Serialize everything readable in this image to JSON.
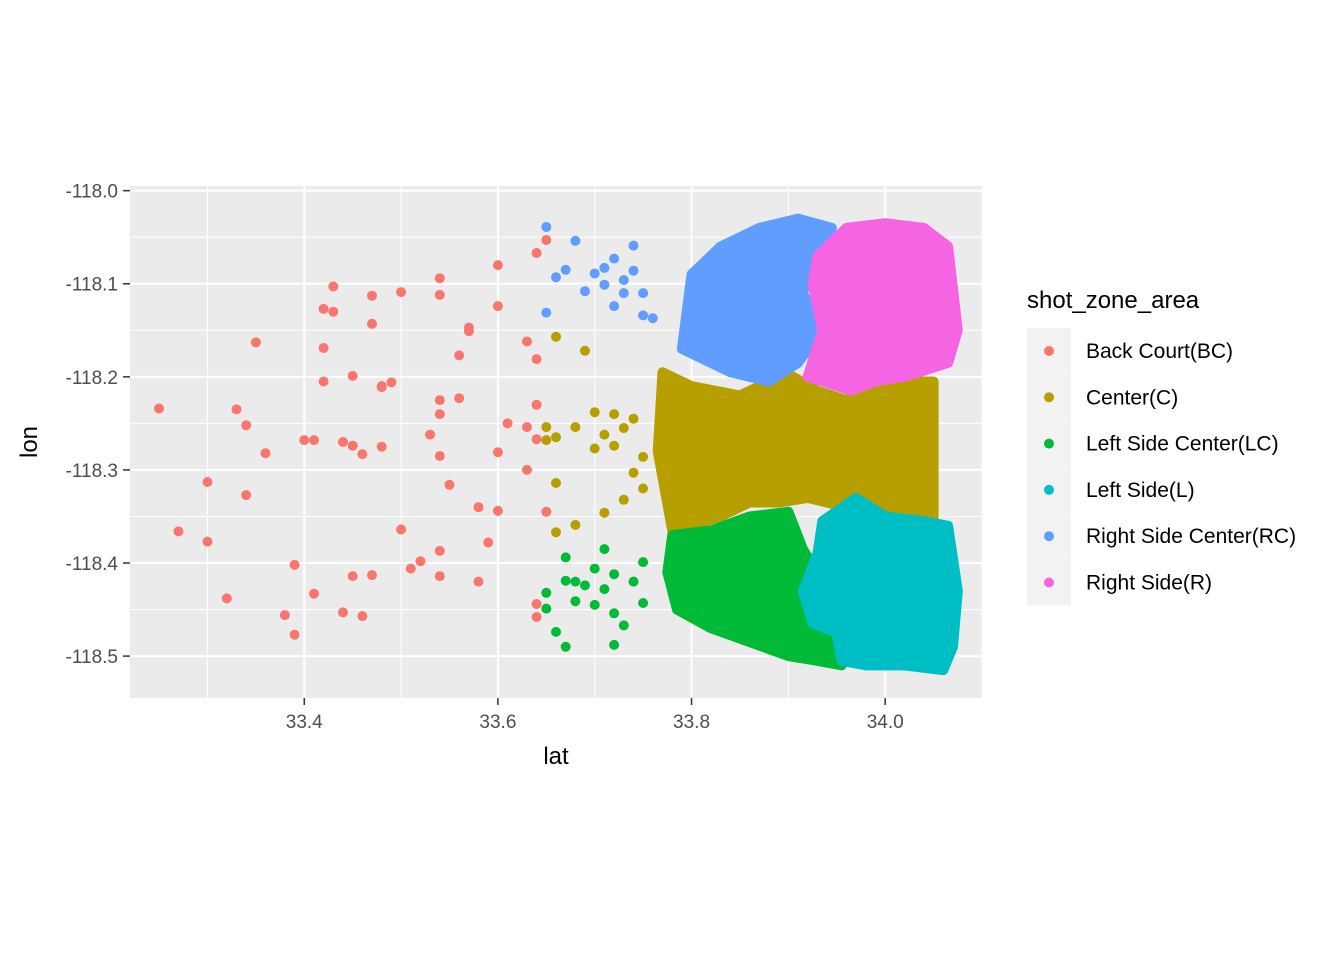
{
  "chart_data": {
    "type": "scatter",
    "title": "",
    "xlabel": "lat",
    "ylabel": "lon",
    "xlim": [
      33.22,
      34.1
    ],
    "ylim": [
      -118.545,
      -117.995
    ],
    "x_ticks": [
      33.4,
      33.6,
      33.8,
      34.0
    ],
    "x_tick_labels": [
      "33.4",
      "33.6",
      "33.8",
      "34.0"
    ],
    "y_ticks": [
      -118.0,
      -118.1,
      -118.2,
      -118.3,
      -118.4,
      -118.5
    ],
    "y_tick_labels": [
      "-118.0",
      "-118.1",
      "-118.2",
      "-118.3",
      "-118.4",
      "-118.5"
    ],
    "grid": true,
    "panel_background": "#ebebeb",
    "legend": {
      "title": "shot_zone_area",
      "placement": "right"
    },
    "series": [
      {
        "name": "Back Court(BC)",
        "color": "#F8766D",
        "points": [
          [
            33.25,
            -118.234
          ],
          [
            33.27,
            -118.366
          ],
          [
            33.3,
            -118.313
          ],
          [
            33.3,
            -118.377
          ],
          [
            33.32,
            -118.438
          ],
          [
            33.33,
            -118.235
          ],
          [
            33.34,
            -118.252
          ],
          [
            33.34,
            -118.327
          ],
          [
            33.35,
            -118.163
          ],
          [
            33.36,
            -118.282
          ],
          [
            33.38,
            -118.456
          ],
          [
            33.39,
            -118.402
          ],
          [
            33.39,
            -118.477
          ],
          [
            33.4,
            -118.268
          ],
          [
            33.41,
            -118.268
          ],
          [
            33.41,
            -118.433
          ],
          [
            33.42,
            -118.127
          ],
          [
            33.42,
            -118.205
          ],
          [
            33.42,
            -118.169
          ],
          [
            33.43,
            -118.13
          ],
          [
            33.43,
            -118.103
          ],
          [
            33.44,
            -118.453
          ],
          [
            33.44,
            -118.27
          ],
          [
            33.45,
            -118.199
          ],
          [
            33.45,
            -118.414
          ],
          [
            33.45,
            -118.274
          ],
          [
            33.46,
            -118.457
          ],
          [
            33.46,
            -118.283
          ],
          [
            33.47,
            -118.113
          ],
          [
            33.47,
            -118.143
          ],
          [
            33.47,
            -118.413
          ],
          [
            33.48,
            -118.211
          ],
          [
            33.48,
            -118.275
          ],
          [
            33.48,
            -118.21
          ],
          [
            33.49,
            -118.206
          ],
          [
            33.5,
            -118.109
          ],
          [
            33.5,
            -118.364
          ],
          [
            33.51,
            -118.406
          ],
          [
            33.52,
            -118.398
          ],
          [
            33.53,
            -118.262
          ],
          [
            33.54,
            -118.094
          ],
          [
            33.54,
            -118.112
          ],
          [
            33.54,
            -118.225
          ],
          [
            33.54,
            -118.24
          ],
          [
            33.54,
            -118.285
          ],
          [
            33.54,
            -118.387
          ],
          [
            33.54,
            -118.414
          ],
          [
            33.55,
            -118.316
          ],
          [
            33.56,
            -118.177
          ],
          [
            33.56,
            -118.223
          ],
          [
            33.57,
            -118.151
          ],
          [
            33.57,
            -118.147
          ],
          [
            33.58,
            -118.34
          ],
          [
            33.58,
            -118.42
          ],
          [
            33.59,
            -118.378
          ],
          [
            33.6,
            -118.124
          ],
          [
            33.6,
            -118.08
          ],
          [
            33.6,
            -118.281
          ],
          [
            33.6,
            -118.344
          ],
          [
            33.61,
            -118.25
          ],
          [
            33.63,
            -118.162
          ],
          [
            33.63,
            -118.3
          ],
          [
            33.63,
            -118.254
          ],
          [
            33.64,
            -118.181
          ],
          [
            33.64,
            -118.067
          ],
          [
            33.64,
            -118.23
          ],
          [
            33.64,
            -118.267
          ],
          [
            33.64,
            -118.444
          ],
          [
            33.64,
            -118.458
          ],
          [
            33.65,
            -118.053
          ],
          [
            33.65,
            -118.345
          ]
        ]
      },
      {
        "name": "Center(C)",
        "color": "#B79F00",
        "points": [
          [
            33.65,
            -118.254
          ],
          [
            33.65,
            -118.268
          ],
          [
            33.66,
            -118.157
          ],
          [
            33.66,
            -118.265
          ],
          [
            33.66,
            -118.314
          ],
          [
            33.66,
            -118.367
          ],
          [
            33.68,
            -118.254
          ],
          [
            33.68,
            -118.359
          ],
          [
            33.69,
            -118.172
          ],
          [
            33.7,
            -118.277
          ],
          [
            33.7,
            -118.238
          ],
          [
            33.71,
            -118.262
          ],
          [
            33.71,
            -118.346
          ],
          [
            33.72,
            -118.24
          ],
          [
            33.72,
            -118.274
          ],
          [
            33.73,
            -118.255
          ],
          [
            33.73,
            -118.332
          ],
          [
            33.74,
            -118.245
          ],
          [
            33.74,
            -118.303
          ],
          [
            33.75,
            -118.286
          ],
          [
            33.75,
            -118.32
          ]
        ]
      },
      {
        "name": "Left Side Center(LC)",
        "color": "#00BA38",
        "points": [
          [
            33.65,
            -118.432
          ],
          [
            33.65,
            -118.449
          ],
          [
            33.66,
            -118.474
          ],
          [
            33.67,
            -118.394
          ],
          [
            33.67,
            -118.419
          ],
          [
            33.67,
            -118.49
          ],
          [
            33.68,
            -118.441
          ],
          [
            33.68,
            -118.42
          ],
          [
            33.69,
            -118.424
          ],
          [
            33.7,
            -118.406
          ],
          [
            33.7,
            -118.445
          ],
          [
            33.71,
            -118.428
          ],
          [
            33.71,
            -118.385
          ],
          [
            33.72,
            -118.412
          ],
          [
            33.72,
            -118.454
          ],
          [
            33.72,
            -118.488
          ],
          [
            33.73,
            -118.467
          ],
          [
            33.74,
            -118.42
          ],
          [
            33.75,
            -118.399
          ],
          [
            33.75,
            -118.443
          ]
        ]
      },
      {
        "name": "Left Side(L)",
        "color": "#00BFC4",
        "points": []
      },
      {
        "name": "Right Side Center(RC)",
        "color": "#619CFF",
        "points": [
          [
            33.65,
            -118.039
          ],
          [
            33.65,
            -118.131
          ],
          [
            33.66,
            -118.093
          ],
          [
            33.67,
            -118.085
          ],
          [
            33.68,
            -118.054
          ],
          [
            33.69,
            -118.108
          ],
          [
            33.7,
            -118.089
          ],
          [
            33.71,
            -118.101
          ],
          [
            33.71,
            -118.083
          ],
          [
            33.72,
            -118.124
          ],
          [
            33.72,
            -118.073
          ],
          [
            33.73,
            -118.096
          ],
          [
            33.73,
            -118.11
          ],
          [
            33.74,
            -118.086
          ],
          [
            33.74,
            -118.059
          ],
          [
            33.75,
            -118.134
          ],
          [
            33.75,
            -118.11
          ],
          [
            33.76,
            -118.137
          ]
        ]
      },
      {
        "name": "Right Side(R)",
        "color": "#F564E3",
        "points": []
      }
    ]
  }
}
